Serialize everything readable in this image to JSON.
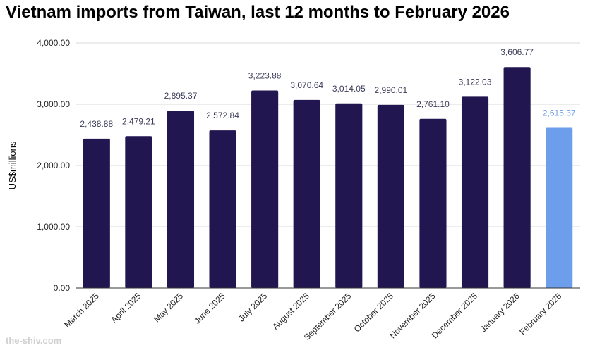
{
  "chart_data": {
    "type": "bar",
    "title": "Vietnam imports from Taiwan, last 12 months to February 2026",
    "xlabel": "",
    "ylabel": "US$millions",
    "ylim": [
      0,
      4000
    ],
    "yticks": [
      "0.00",
      "1,000.00",
      "2,000.00",
      "3,000.00",
      "4,000.00"
    ],
    "grid": true,
    "categories": [
      "March 2025",
      "April 2025",
      "May 2025",
      "June 2025",
      "July 2025",
      "August 2025",
      "September 2025",
      "October 2025",
      "November 2025",
      "December 2025",
      "January 2026",
      "February 2026"
    ],
    "values": [
      2438.88,
      2479.21,
      2895.37,
      2572.84,
      3223.88,
      3070.64,
      3014.05,
      2990.01,
      2761.1,
      3122.03,
      3606.77,
      2615.37
    ],
    "value_labels": [
      "2,438.88",
      "2,479.21",
      "2,895.37",
      "2,572.84",
      "3,223.88",
      "3,070.64",
      "3,014.05",
      "2,990.01",
      "2,761.10",
      "3,122.03",
      "3,606.77",
      "2,615.37"
    ],
    "colors": {
      "bar": "#211650",
      "highlight_bar": "#6d9eeb",
      "label": "#3c3c5a",
      "highlight_label": "#6d9eeb",
      "grid": "#d9d9d9",
      "axis": "#333333"
    },
    "highlight_index": 11
  },
  "watermark": "the-shiv.com"
}
